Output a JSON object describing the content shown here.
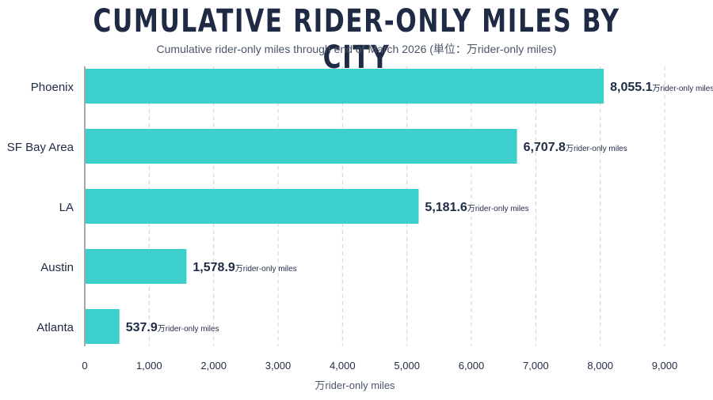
{
  "chart_data": {
    "type": "bar",
    "orientation": "horizontal",
    "title": "CUMULATIVE RIDER-ONLY MILES BY CITY",
    "subtitle": "Cumulative rider-only miles through end of March 2026 (単位：万rider-only miles)",
    "xlabel": "万rider-only miles",
    "ylabel": "",
    "categories": [
      "Phoenix",
      "SF Bay Area",
      "LA",
      "Austin",
      "Atlanta"
    ],
    "values": [
      8055.1,
      6707.8,
      5181.6,
      1578.9,
      537.9
    ],
    "value_labels": [
      "8,055.1",
      "6,707.8",
      "5,181.6",
      "1,578.9",
      "537.9"
    ],
    "value_unit": "万rider-only miles",
    "xlim": [
      0,
      9000
    ],
    "xticks": [
      0,
      1000,
      2000,
      3000,
      4000,
      5000,
      6000,
      7000,
      8000,
      9000
    ],
    "xtick_labels": [
      "0",
      "1,000",
      "2,000",
      "3,000",
      "4,000",
      "5,000",
      "6,000",
      "7,000",
      "8,000",
      "9,000"
    ],
    "grid": true,
    "colors": {
      "bar": "#3ccfcc",
      "grid": "#d0d0d0",
      "axis": "#8a8a8a",
      "text": "#1f2a44"
    }
  }
}
